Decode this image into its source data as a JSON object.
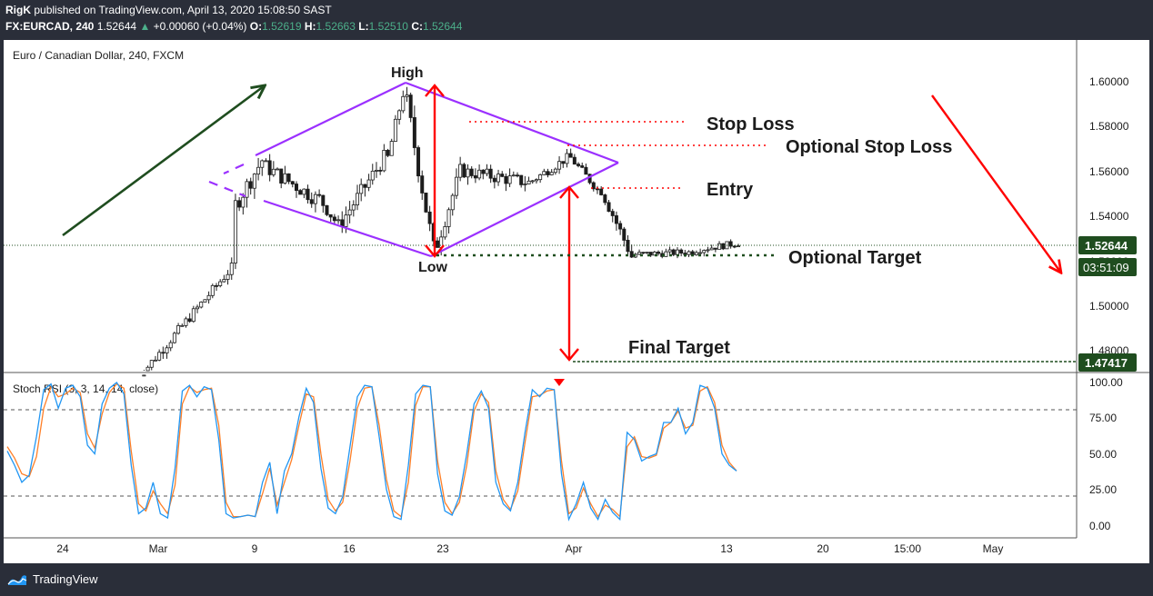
{
  "header": {
    "publisher": "RigK",
    "published_text": "published on TradingView.com, April 13, 2020 15:08:50 SAST",
    "symbol": "FX:EURCAD, 240",
    "last": "1.52644",
    "change": "+0.00060 (+0.04%)",
    "o_label": "O:",
    "o_value": "1.52619",
    "h_label": "H:",
    "h_value": "1.52663",
    "l_label": "L:",
    "l_value": "1.52510",
    "c_label": "C:",
    "c_value": "1.52644"
  },
  "footer": {
    "brand": "TradingView"
  },
  "colors": {
    "candle": "#1c1c1c",
    "diamond": "#9b30ff",
    "red": "#ff0000",
    "green_arrow": "#1f4d1f",
    "target_dots": "#1f4d1f",
    "stoch_k": "#2196f3",
    "stoch_d": "#ff7f27",
    "price_label_bg": "#1f4d1f"
  },
  "chart_data": [
    {
      "type": "candlestick",
      "title": "Euro / Canadian Dollar, 240, FXCM",
      "x_labels": [
        "24",
        "Mar",
        "9",
        "16",
        "23",
        "Apr",
        "13",
        "20",
        "15:00",
        "May"
      ],
      "y_ticks": [
        "1.60000",
        "1.58000",
        "1.56000",
        "1.54000",
        "1.52000",
        "1.50000",
        "1.48000"
      ],
      "ylim": [
        1.4735,
        1.614
      ],
      "current_price_label": "1.52644",
      "countdown_label": "03:51:09",
      "final_target_label": "1.47417",
      "annotations": {
        "high": "High",
        "low": "Low",
        "stop_loss": "Stop Loss",
        "optional_stop_loss": "Optional Stop Loss",
        "entry": "Entry",
        "optional_target": "Optional Target",
        "final_target": "Final Target"
      },
      "levels": {
        "stop_loss": 1.581,
        "optional_stop_loss": 1.571,
        "entry": 1.553,
        "optional_target": 1.5205,
        "final_target": 1.47417,
        "current": 1.52644,
        "high": 1.5995,
        "low": 1.521
      },
      "candles_segments": [
        {
          "from": 1.467,
          "to": 1.517,
          "n": 26,
          "noise": 0.0045
        },
        {
          "from": 1.545,
          "to": 1.565,
          "n": 8,
          "noise": 0.008
        },
        {
          "from": 1.562,
          "to": 1.548,
          "n": 14,
          "noise": 0.007
        },
        {
          "from": 1.548,
          "to": 1.536,
          "n": 6,
          "noise": 0.006
        },
        {
          "from": 1.538,
          "to": 1.566,
          "n": 12,
          "noise": 0.007
        },
        {
          "from": 1.566,
          "to": 1.595,
          "n": 5,
          "noise": 0.006
        },
        {
          "from": 1.59,
          "to": 1.525,
          "n": 8,
          "noise": 0.01
        },
        {
          "from": 1.528,
          "to": 1.56,
          "n": 7,
          "noise": 0.007
        },
        {
          "from": 1.56,
          "to": 1.555,
          "n": 18,
          "noise": 0.006
        },
        {
          "from": 1.556,
          "to": 1.566,
          "n": 10,
          "noise": 0.004
        },
        {
          "from": 1.566,
          "to": 1.552,
          "n": 8,
          "noise": 0.004
        },
        {
          "from": 1.552,
          "to": 1.522,
          "n": 9,
          "noise": 0.006
        },
        {
          "from": 1.523,
          "to": 1.524,
          "n": 16,
          "noise": 0.003
        },
        {
          "from": 1.525,
          "to": 1.528,
          "n": 12,
          "noise": 0.003
        }
      ]
    },
    {
      "type": "line",
      "title": "Stoch RSI (3, 3, 14, 14, close)",
      "y_ticks": [
        "100.00",
        "75.00",
        "50.00",
        "25.00",
        "0.00"
      ],
      "ylim": [
        -2,
        103
      ],
      "bands": [
        80,
        20
      ],
      "series": [
        {
          "name": "K",
          "values": [
            52,
            42,
            30,
            35,
            62,
            95,
            99,
            82,
            96,
            98,
            90,
            56,
            50,
            85,
            96,
            100,
            92,
            42,
            8,
            12,
            30,
            8,
            5,
            40,
            94,
            98,
            90,
            97,
            95,
            60,
            8,
            5,
            6,
            7,
            6,
            30,
            44,
            8,
            38,
            50,
            76,
            96,
            86,
            40,
            12,
            8,
            20,
            55,
            90,
            98,
            97,
            62,
            25,
            6,
            4,
            42,
            92,
            98,
            97,
            36,
            10,
            7,
            20,
            50,
            85,
            94,
            82,
            30,
            15,
            10,
            30,
            65,
            95,
            90,
            96,
            95,
            36,
            4,
            15,
            30,
            12,
            4,
            18,
            9,
            4,
            65,
            60,
            45,
            48,
            50,
            72,
            72,
            82,
            64,
            72,
            98,
            96,
            82,
            50,
            42,
            38
          ]
        },
        {
          "name": "D",
          "values": [
            55,
            47,
            36,
            34,
            48,
            82,
            97,
            90,
            92,
            96,
            93,
            64,
            54,
            78,
            93,
            99,
            96,
            52,
            15,
            10,
            24,
            15,
            8,
            28,
            85,
            97,
            93,
            95,
            96,
            70,
            16,
            6,
            6,
            7,
            6,
            22,
            40,
            14,
            30,
            46,
            70,
            92,
            90,
            50,
            18,
            10,
            16,
            45,
            82,
            96,
            97,
            70,
            32,
            10,
            6,
            30,
            84,
            97,
            97,
            45,
            16,
            8,
            16,
            42,
            80,
            92,
            86,
            38,
            18,
            11,
            24,
            58,
            90,
            91,
            94,
            95,
            45,
            8,
            12,
            26,
            15,
            6,
            14,
            11,
            6,
            55,
            62,
            48,
            47,
            49,
            68,
            72,
            80,
            68,
            70,
            94,
            97,
            86,
            56,
            44,
            38
          ]
        }
      ]
    }
  ]
}
